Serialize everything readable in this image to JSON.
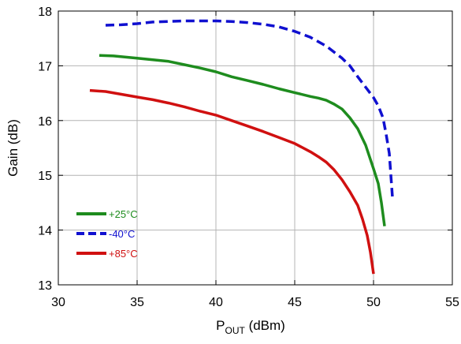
{
  "chart_data": {
    "type": "line",
    "title": "",
    "xlabel_main": "P",
    "xlabel_sub": "OUT",
    "xlabel_unit": " (dBm)",
    "ylabel": "Gain (dB)",
    "xlim": [
      30,
      55
    ],
    "ylim": [
      13,
      18
    ],
    "x_ticks": [
      30,
      35,
      40,
      45,
      50,
      55
    ],
    "y_ticks": [
      13,
      14,
      15,
      16,
      17,
      18
    ],
    "grid": true,
    "legend_position": "bottom-left",
    "series": [
      {
        "name": "+25°C",
        "color": "#1e8c1e",
        "dash": "solid",
        "points": [
          [
            32.6,
            17.19
          ],
          [
            33.5,
            17.18
          ],
          [
            35,
            17.14
          ],
          [
            36,
            17.11
          ],
          [
            37,
            17.08
          ],
          [
            38,
            17.02
          ],
          [
            39,
            16.96
          ],
          [
            40,
            16.89
          ],
          [
            41,
            16.8
          ],
          [
            42,
            16.73
          ],
          [
            43,
            16.66
          ],
          [
            44,
            16.58
          ],
          [
            45,
            16.51
          ],
          [
            46,
            16.44
          ],
          [
            46.5,
            16.41
          ],
          [
            47,
            16.37
          ],
          [
            47.5,
            16.3
          ],
          [
            48,
            16.21
          ],
          [
            48.5,
            16.05
          ],
          [
            49,
            15.85
          ],
          [
            49.5,
            15.55
          ],
          [
            50,
            15.12
          ],
          [
            50.3,
            14.85
          ],
          [
            50.5,
            14.5
          ],
          [
            50.7,
            14.07
          ]
        ]
      },
      {
        "name": "-40°C",
        "color": "#1010d0",
        "dash": "dashed",
        "points": [
          [
            33,
            17.74
          ],
          [
            34,
            17.75
          ],
          [
            35,
            17.77
          ],
          [
            36,
            17.8
          ],
          [
            37,
            17.81
          ],
          [
            38,
            17.82
          ],
          [
            39,
            17.82
          ],
          [
            40,
            17.82
          ],
          [
            41,
            17.81
          ],
          [
            42,
            17.79
          ],
          [
            43,
            17.76
          ],
          [
            44,
            17.71
          ],
          [
            45,
            17.63
          ],
          [
            46,
            17.52
          ],
          [
            47,
            17.36
          ],
          [
            48,
            17.14
          ],
          [
            48.5,
            17
          ],
          [
            49,
            16.8
          ],
          [
            49.5,
            16.61
          ],
          [
            50,
            16.42
          ],
          [
            50.3,
            16.27
          ],
          [
            50.6,
            16.05
          ],
          [
            50.8,
            15.75
          ],
          [
            51,
            15.4
          ],
          [
            51.1,
            15
          ],
          [
            51.2,
            14.6
          ]
        ]
      },
      {
        "name": "+85°C",
        "color": "#d01010",
        "dash": "solid",
        "points": [
          [
            32,
            16.55
          ],
          [
            33,
            16.53
          ],
          [
            34,
            16.48
          ],
          [
            35,
            16.43
          ],
          [
            36,
            16.38
          ],
          [
            37,
            16.32
          ],
          [
            38,
            16.25
          ],
          [
            39,
            16.17
          ],
          [
            40,
            16.1
          ],
          [
            41,
            16.0
          ],
          [
            42,
            15.9
          ],
          [
            43,
            15.8
          ],
          [
            44,
            15.69
          ],
          [
            45,
            15.58
          ],
          [
            46,
            15.43
          ],
          [
            46.5,
            15.34
          ],
          [
            47,
            15.24
          ],
          [
            47.5,
            15.1
          ],
          [
            48,
            14.92
          ],
          [
            48.5,
            14.7
          ],
          [
            49,
            14.45
          ],
          [
            49.3,
            14.2
          ],
          [
            49.6,
            13.9
          ],
          [
            49.8,
            13.6
          ],
          [
            49.9,
            13.4
          ],
          [
            50,
            13.2
          ]
        ]
      }
    ]
  }
}
